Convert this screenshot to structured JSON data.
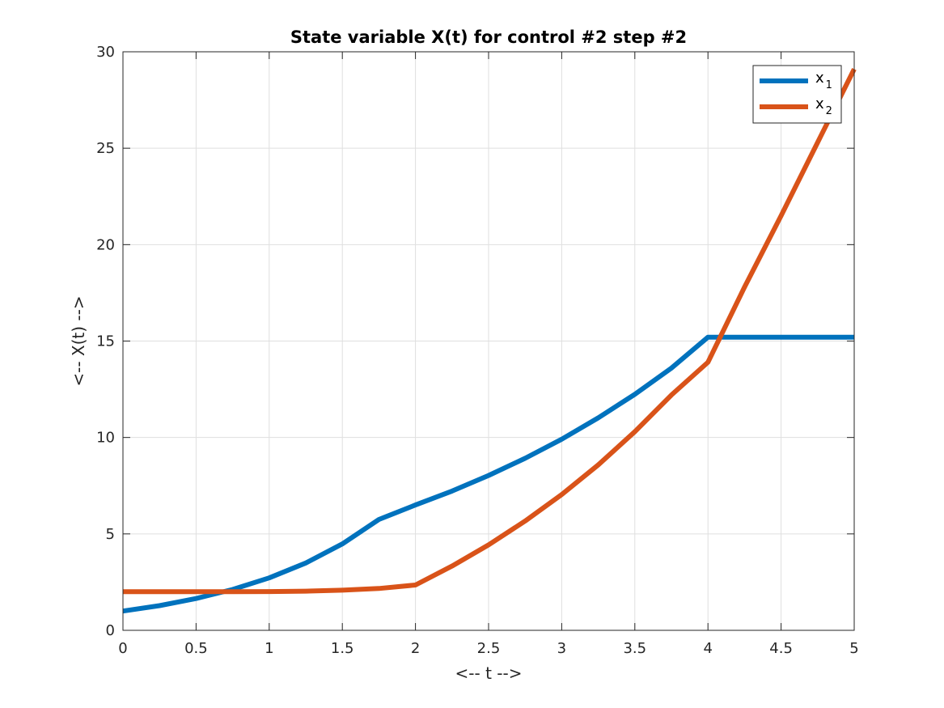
{
  "chart_data": {
    "type": "line",
    "title": "State variable X(t) for control #2 step #2",
    "xlabel": "<-- t -->",
    "ylabel": "<-- X(t) -->",
    "xlim": [
      0,
      5
    ],
    "ylim": [
      0,
      30
    ],
    "xticks": [
      0,
      0.5,
      1,
      1.5,
      2,
      2.5,
      3,
      3.5,
      4,
      4.5,
      5
    ],
    "xtick_labels": [
      "0",
      "0.5",
      "1",
      "1.5",
      "2",
      "2.5",
      "3",
      "3.5",
      "4",
      "4.5",
      "5"
    ],
    "yticks": [
      0,
      5,
      10,
      15,
      20,
      25,
      30
    ],
    "ytick_labels": [
      "0",
      "5",
      "10",
      "15",
      "20",
      "25",
      "30"
    ],
    "grid": true,
    "legend": {
      "position": "top-right"
    },
    "series": [
      {
        "name": "x",
        "subscript": "1",
        "color": "#0072BD",
        "x": [
          0,
          0.25,
          0.5,
          0.75,
          1,
          1.25,
          1.5,
          1.75,
          2,
          2.25,
          2.5,
          2.75,
          3,
          3.25,
          3.5,
          3.75,
          4,
          4.25,
          4.5,
          4.75,
          5
        ],
        "y": [
          1.0,
          1.28,
          1.65,
          2.12,
          2.72,
          3.49,
          4.48,
          5.75,
          6.5,
          7.22,
          8.03,
          8.92,
          9.91,
          11.02,
          12.24,
          13.6,
          15.2,
          15.2,
          15.2,
          15.2,
          15.2
        ]
      },
      {
        "name": "x",
        "subscript": "2",
        "color": "#D95319",
        "x": [
          0,
          0.25,
          0.5,
          0.75,
          1,
          1.25,
          1.5,
          1.75,
          2,
          2.25,
          2.5,
          2.75,
          3,
          3.25,
          3.5,
          3.75,
          4,
          4.25,
          4.5,
          4.75,
          5
        ],
        "y": [
          2.0,
          2.0,
          2.0,
          2.0,
          2.01,
          2.03,
          2.08,
          2.17,
          2.35,
          3.33,
          4.43,
          5.67,
          7.04,
          8.58,
          10.3,
          12.2,
          13.9,
          17.8,
          21.5,
          25.3,
          29.1
        ]
      }
    ]
  }
}
